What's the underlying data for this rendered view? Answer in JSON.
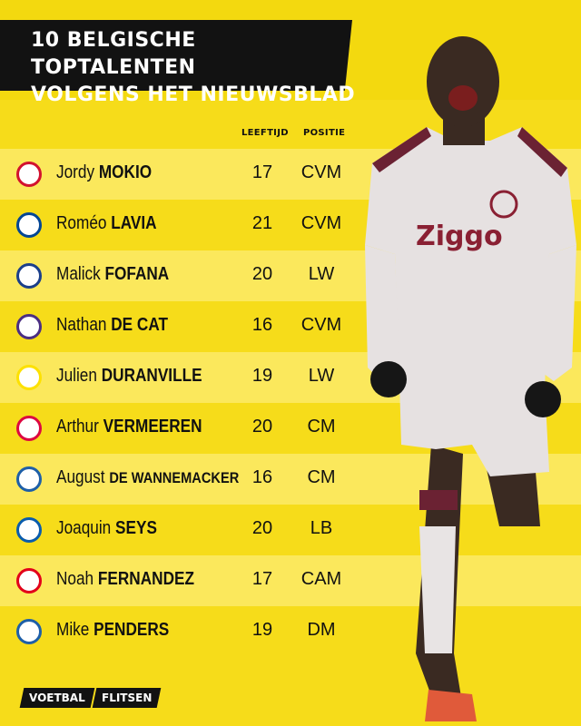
{
  "title": {
    "line1": "10 BELGISCHE TOPTALENTEN",
    "line2": "VOLGENS HET NIEUWSBLAD"
  },
  "columns": {
    "age": "LEEFTIJD",
    "position": "POSITIE"
  },
  "players": [
    {
      "first": "Jordy",
      "last": "MOKIO",
      "age": "17",
      "position": "CVM",
      "club_icon": "ajax-crest-icon",
      "club_color": "#d2122e"
    },
    {
      "first": "Roméo",
      "last": "LAVIA",
      "age": "21",
      "position": "CVM",
      "club_icon": "chelsea-crest-icon",
      "club_color": "#034694"
    },
    {
      "first": "Malick",
      "last": "FOFANA",
      "age": "20",
      "position": "LW",
      "club_icon": "lyon-crest-icon",
      "club_color": "#1b3f8b"
    },
    {
      "first": "Nathan",
      "last": "DE CAT",
      "age": "16",
      "position": "CVM",
      "club_icon": "anderlecht-crest-icon",
      "club_color": "#4b2e83"
    },
    {
      "first": "Julien",
      "last": "DURANVILLE",
      "age": "19",
      "position": "LW",
      "club_icon": "dortmund-crest-icon",
      "club_color": "#fde100"
    },
    {
      "first": "Arthur",
      "last": "VERMEEREN",
      "age": "20",
      "position": "CM",
      "club_icon": "leipzig-crest-icon",
      "club_color": "#dd0741"
    },
    {
      "first": "August",
      "last": "DE WANNEMACKER",
      "age": "16",
      "position": "CM",
      "club_icon": "genk-crest-icon",
      "club_color": "#1e5fa8"
    },
    {
      "first": "Joaquin",
      "last": "SEYS",
      "age": "20",
      "position": "LB",
      "club_icon": "club-brugge-crest-icon",
      "club_color": "#0a5cad"
    },
    {
      "first": "Noah",
      "last": "FERNANDEZ",
      "age": "17",
      "position": "CAM",
      "club_icon": "psv-crest-icon",
      "club_color": "#e2001a"
    },
    {
      "first": "Mike",
      "last": "PENDERS",
      "age": "19",
      "position": "DM",
      "club_icon": "genk-crest-icon",
      "club_color": "#1e5fa8"
    }
  ],
  "player_photo": {
    "shirt_sponsor": "Ziggo",
    "shirt_color": "#e6e1e1",
    "trim_color": "#6b2233"
  },
  "footer": {
    "logo_part1": "VOETBAL",
    "logo_part2": "FLITSEN"
  },
  "colors": {
    "background": "#f6dc1a",
    "alt_row": "#fbe85c",
    "title_box": "#121212"
  }
}
